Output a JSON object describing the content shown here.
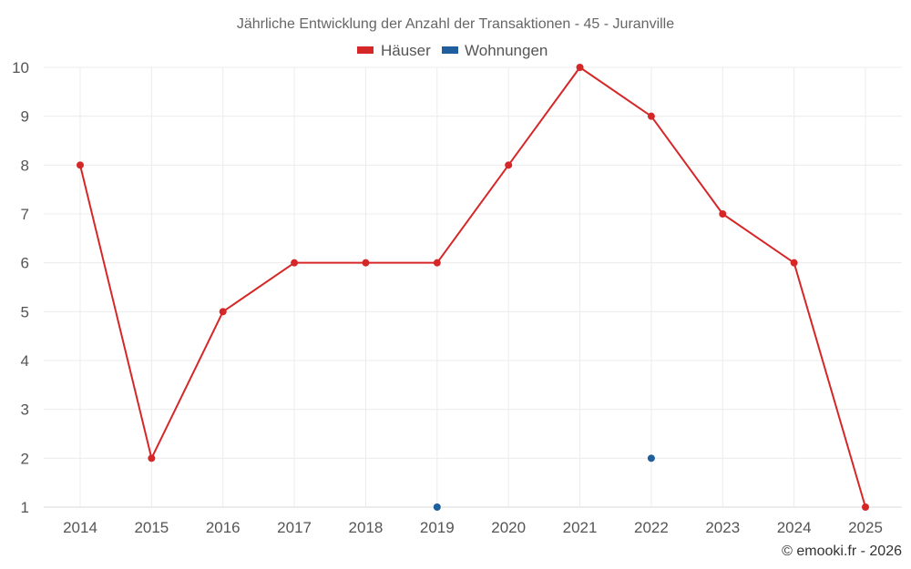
{
  "chart_data": {
    "type": "line",
    "title": "Jährliche Entwicklung der Anzahl der Transaktionen - 45 - Juranville",
    "categories": [
      "2014",
      "2015",
      "2016",
      "2017",
      "2018",
      "2019",
      "2020",
      "2021",
      "2022",
      "2023",
      "2024",
      "2025"
    ],
    "series": [
      {
        "name": "Häuser",
        "color": "#d62728",
        "values": [
          8,
          2,
          5,
          6,
          6,
          6,
          8,
          10,
          9,
          7,
          6,
          1
        ],
        "style": "line"
      },
      {
        "name": "Wohnungen",
        "color": "#1f5f9e",
        "values": [
          null,
          null,
          null,
          null,
          null,
          1,
          null,
          null,
          2,
          null,
          null,
          null
        ],
        "style": "points"
      }
    ],
    "xlabel": "",
    "ylabel": "",
    "yticks": [
      1,
      2,
      3,
      4,
      5,
      6,
      7,
      8,
      9,
      10
    ],
    "ylim": [
      1,
      10
    ],
    "grid": true,
    "legend": "top-center"
  },
  "credit": "© emooki.fr - 2026"
}
